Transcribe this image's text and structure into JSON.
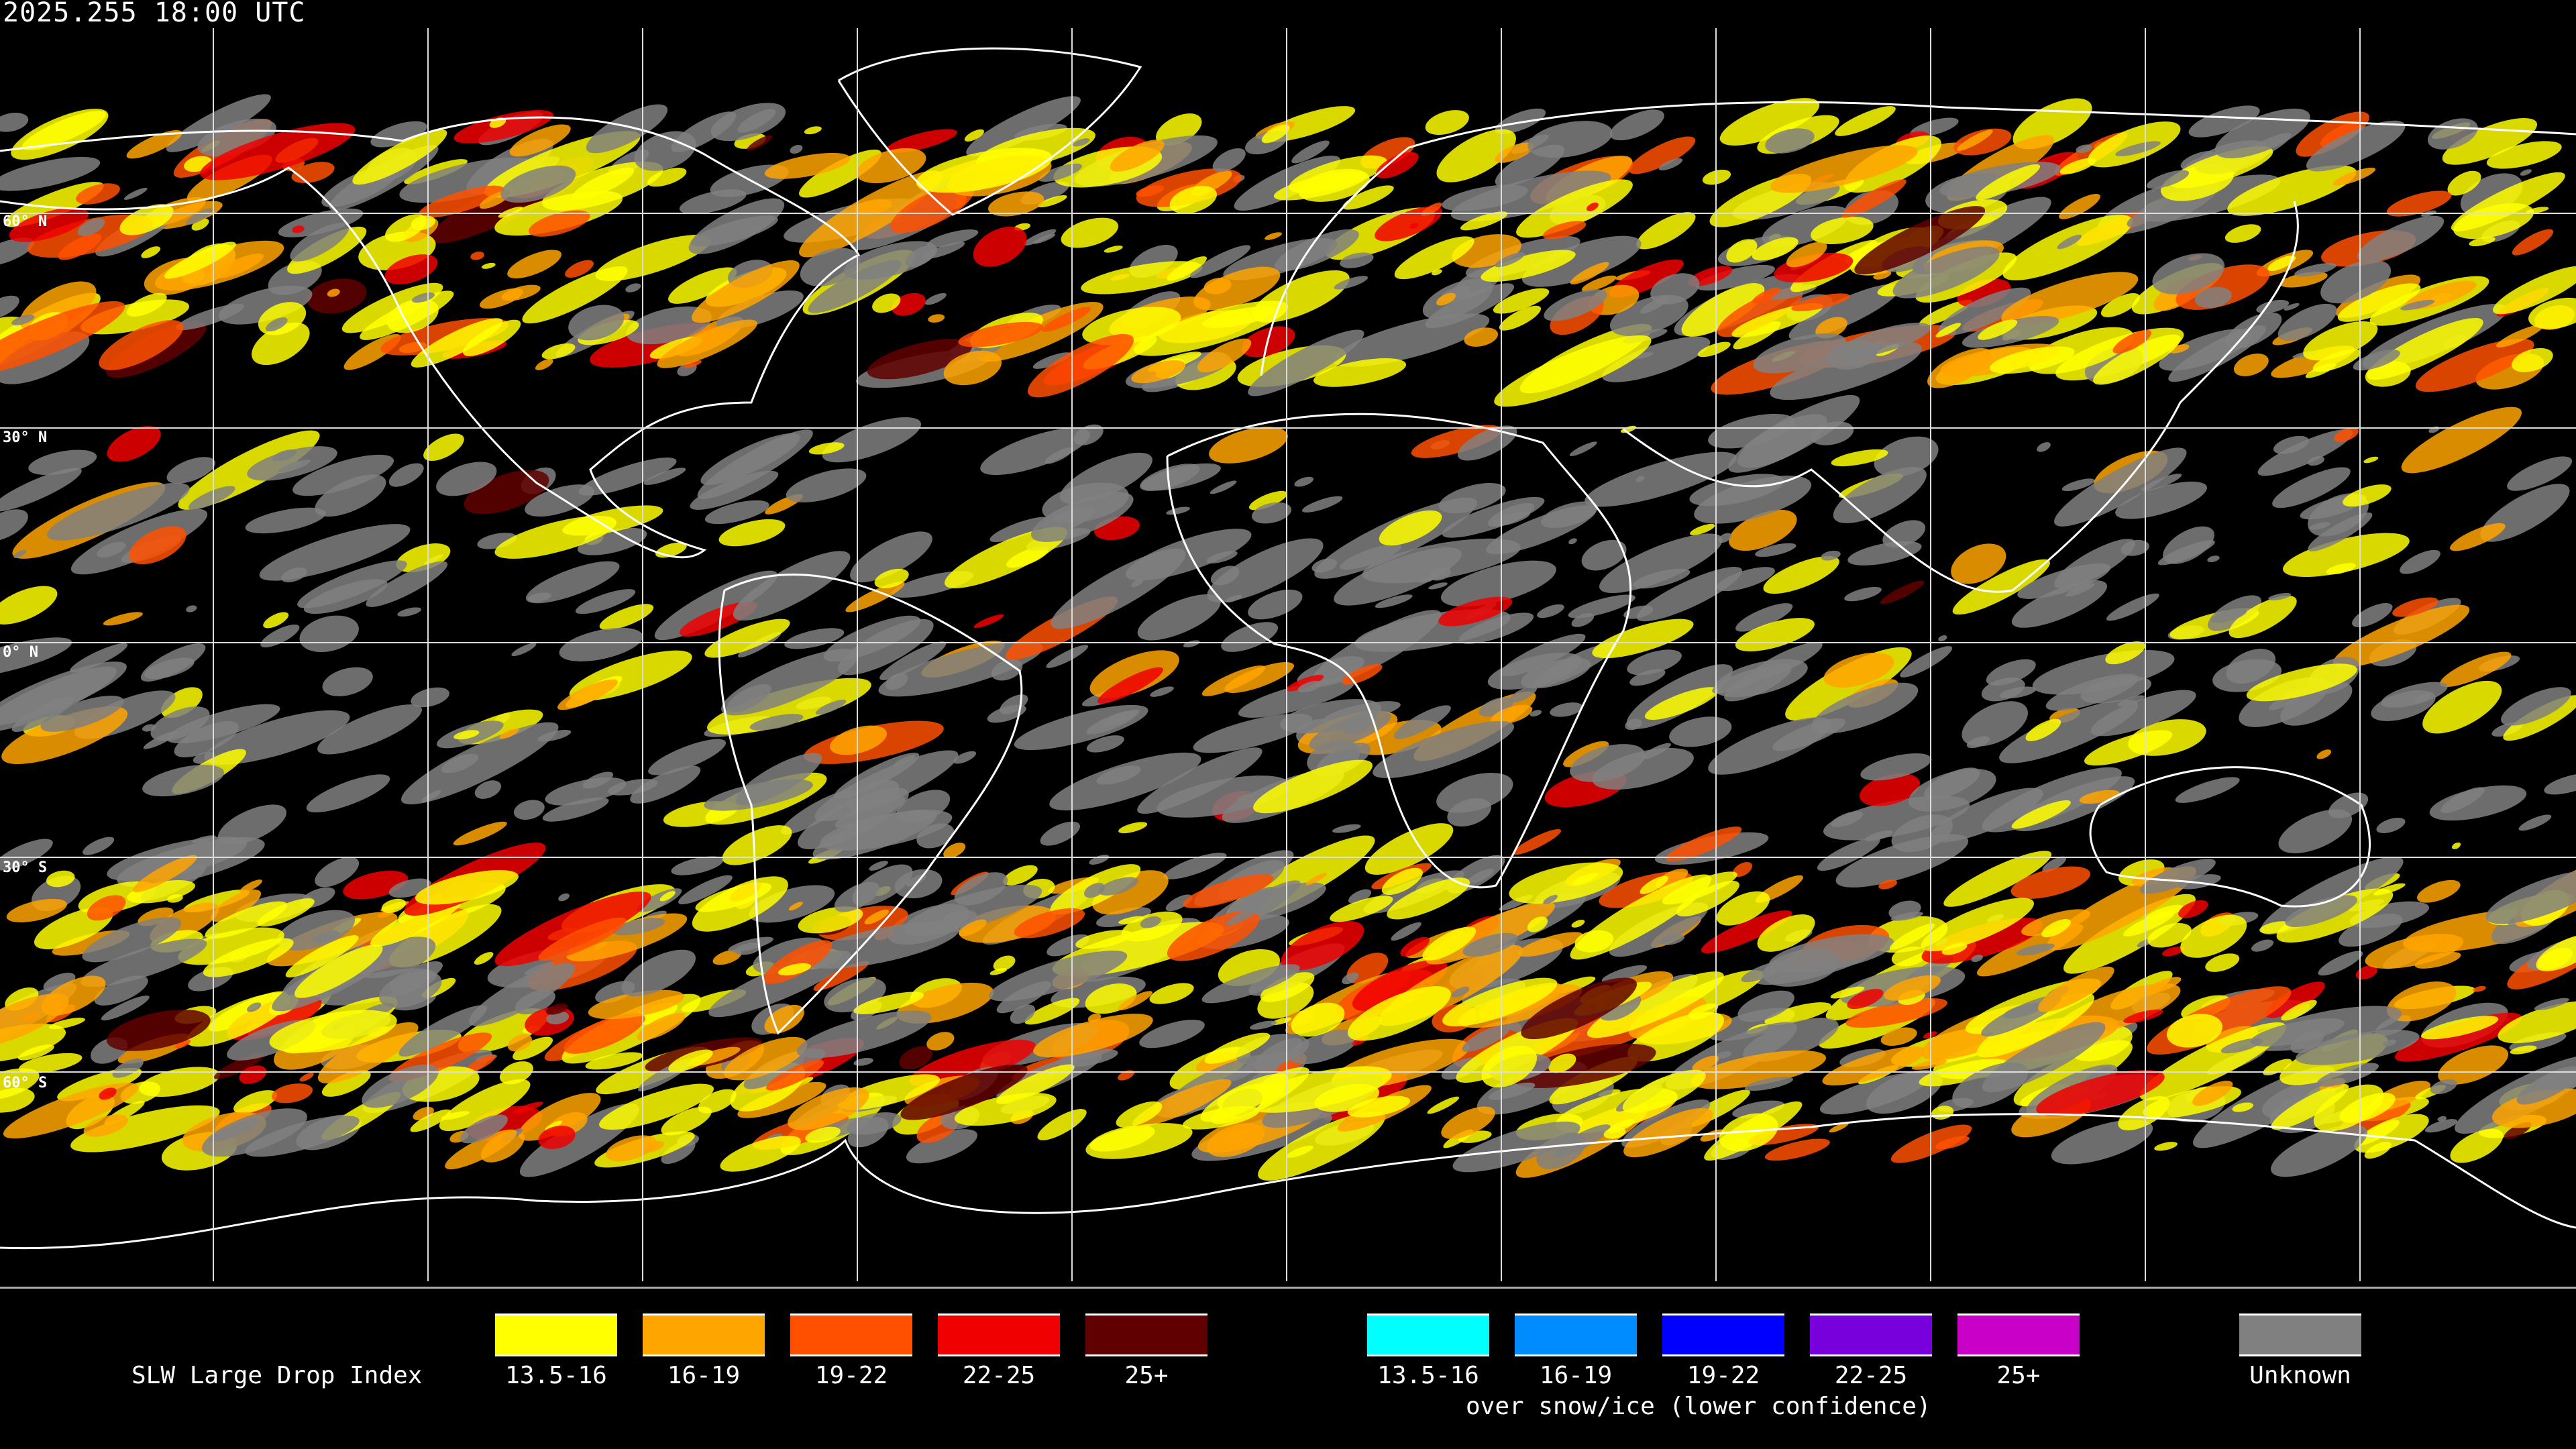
{
  "title": "2025.255 18:00 UTC",
  "latitude_labels": [
    "60° N",
    "30° N",
    "0° N",
    "30° S",
    "60° S"
  ],
  "legend": {
    "title": "SLW Large Drop Index",
    "primary": [
      {
        "label": "13.5-16",
        "color": "#ffff00"
      },
      {
        "label": "16-19",
        "color": "#ffa500"
      },
      {
        "label": "19-22",
        "color": "#ff5000"
      },
      {
        "label": "22-25",
        "color": "#f00000"
      },
      {
        "label": "25+",
        "color": "#600000"
      }
    ],
    "snow_ice": [
      {
        "label": "13.5-16",
        "color": "#00ffff"
      },
      {
        "label": "16-19",
        "color": "#008cff"
      },
      {
        "label": "19-22",
        "color": "#0000ff"
      },
      {
        "label": "22-25",
        "color": "#7800dc"
      },
      {
        "label": "25+",
        "color": "#c800c8"
      }
    ],
    "snow_ice_caption": "over snow/ice (lower confidence)",
    "unknown": {
      "label": "Unknown",
      "color": "#808080"
    }
  }
}
